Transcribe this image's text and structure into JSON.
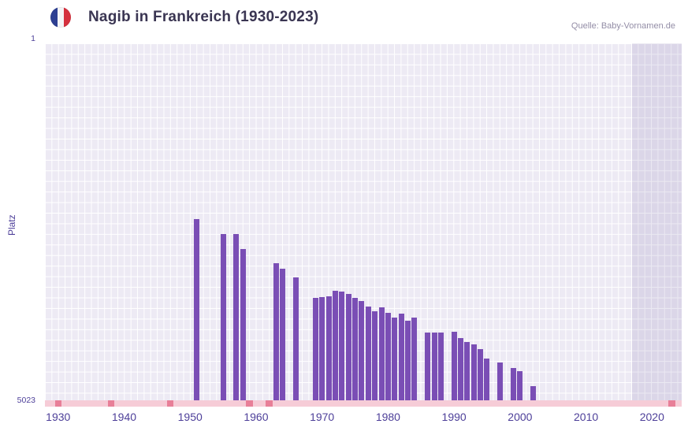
{
  "header": {
    "title": "Nagib in Frankreich (1930-2023)",
    "flag_icon": "france-flag-icon",
    "source": "Quelle: Baby-Vornamen.de"
  },
  "chart_data": {
    "type": "bar",
    "title": "Nagib in Frankreich (1930-2023)",
    "ylabel": "Platz",
    "y_axis": {
      "top_tick": "1",
      "bottom_tick": "5023",
      "min": 1,
      "max": 5023,
      "inverted": true
    },
    "x_axis": {
      "domain_start": 1928.5,
      "domain_end": 2025,
      "ticks": [
        "1930",
        "1940",
        "1950",
        "1960",
        "1970",
        "1980",
        "1990",
        "2000",
        "2010",
        "2020"
      ]
    },
    "bars": [
      {
        "year": 1951,
        "rank": 2450
      },
      {
        "year": 1955,
        "rank": 2660
      },
      {
        "year": 1957,
        "rank": 2660
      },
      {
        "year": 1958,
        "rank": 2870
      },
      {
        "year": 1963,
        "rank": 3065
      },
      {
        "year": 1964,
        "rank": 3145
      },
      {
        "year": 1966,
        "rank": 3265
      },
      {
        "year": 1969,
        "rank": 3545
      },
      {
        "year": 1970,
        "rank": 3535
      },
      {
        "year": 1971,
        "rank": 3525
      },
      {
        "year": 1972,
        "rank": 3450
      },
      {
        "year": 1973,
        "rank": 3460
      },
      {
        "year": 1974,
        "rank": 3495
      },
      {
        "year": 1975,
        "rank": 3545
      },
      {
        "year": 1976,
        "rank": 3590
      },
      {
        "year": 1977,
        "rank": 3670
      },
      {
        "year": 1978,
        "rank": 3735
      },
      {
        "year": 1979,
        "rank": 3680
      },
      {
        "year": 1980,
        "rank": 3755
      },
      {
        "year": 1981,
        "rank": 3820
      },
      {
        "year": 1982,
        "rank": 3775
      },
      {
        "year": 1983,
        "rank": 3865
      },
      {
        "year": 1984,
        "rank": 3820
      },
      {
        "year": 1986,
        "rank": 4035
      },
      {
        "year": 1987,
        "rank": 4035
      },
      {
        "year": 1988,
        "rank": 4035
      },
      {
        "year": 1990,
        "rank": 4025
      },
      {
        "year": 1991,
        "rank": 4110
      },
      {
        "year": 1992,
        "rank": 4165
      },
      {
        "year": 1993,
        "rank": 4200
      },
      {
        "year": 1994,
        "rank": 4265
      },
      {
        "year": 1995,
        "rank": 4395
      },
      {
        "year": 1997,
        "rank": 4450
      },
      {
        "year": 1999,
        "rank": 4530
      },
      {
        "year": 2000,
        "rank": 4575
      },
      {
        "year": 2002,
        "rank": 4785
      }
    ],
    "axis_marker_years": [
      1930,
      1938,
      1947,
      1959,
      1962,
      2023
    ],
    "shaded_region_years": {
      "from": 2017.5,
      "to": 2025
    },
    "colors": {
      "bar": "#7a4eb5",
      "plot_bg": "#edeaf4",
      "grid": "#ffffff",
      "axis_strip": "#f6ccd7",
      "axis_marker": "#e87f98",
      "shaded_overlay": "rgba(93,71,148,0.12)",
      "axis_text": "#4d3f99",
      "title_text": "#3a3552",
      "source_text": "#938da6",
      "flag_blue": "#2d3f92",
      "flag_white": "#f4f4f6",
      "flag_red": "#d5303e"
    }
  }
}
